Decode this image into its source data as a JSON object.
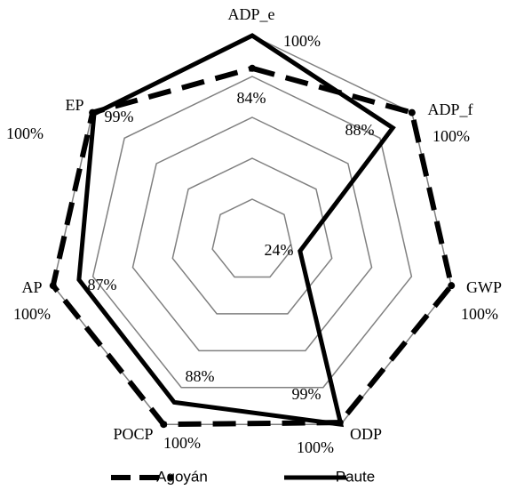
{
  "chart_data": {
    "type": "radar",
    "categories": [
      "ADP_e",
      "ADP_f",
      "GWP",
      "ODP",
      "POCP",
      "AP",
      "EP"
    ],
    "series": [
      {
        "name": "Agoyán",
        "color": "#000000",
        "dash": true,
        "values": [
          84,
          100,
          100,
          99,
          100,
          100,
          100
        ],
        "value_labels": [
          "84%",
          "100%",
          "100%",
          "99%",
          "100%",
          "100%",
          "100%"
        ]
      },
      {
        "name": "Paute",
        "color": "#000000",
        "dash": false,
        "values": [
          100,
          88,
          24,
          100,
          88,
          87,
          99
        ],
        "value_labels": [
          "100%",
          "88%",
          "24%",
          "100%",
          "88%",
          "87%",
          "99%"
        ]
      }
    ],
    "ylim": [
      0,
      100
    ],
    "yticks": [
      20,
      40,
      60,
      80,
      100
    ],
    "grid": true,
    "legend": "bottom"
  }
}
